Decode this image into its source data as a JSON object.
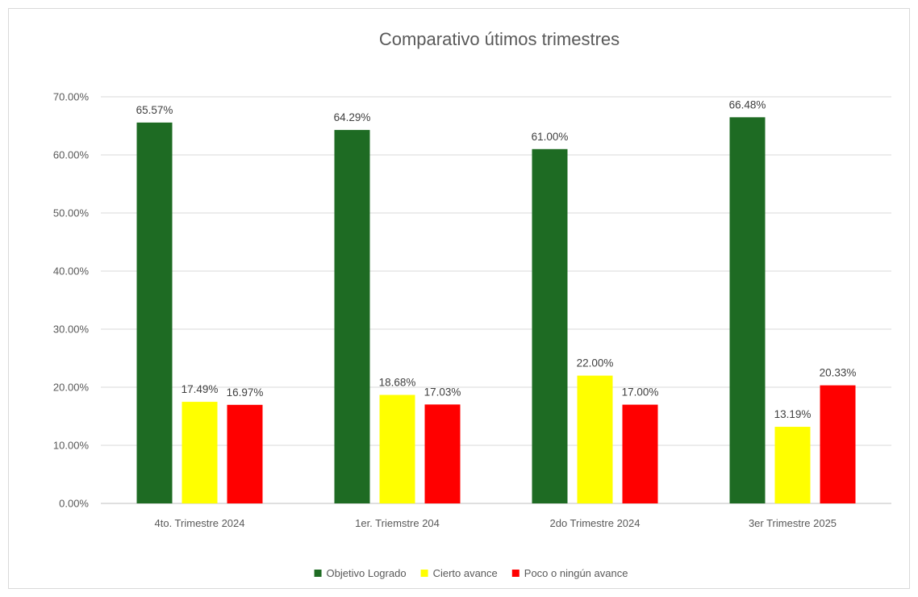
{
  "chart_data": {
    "type": "bar",
    "title": "Comparativo útimos trimestres",
    "categories": [
      "4to. Trimestre 2024",
      "1er. Triemstre 204",
      "2do Trimestre 2024",
      "3er Trimestre 2025"
    ],
    "series": [
      {
        "name": "Objetivo Logrado",
        "color": "#1e6b23",
        "values": [
          65.57,
          64.29,
          61.0,
          66.48
        ],
        "labels": [
          "65.57%",
          "64.29%",
          "61.00%",
          "66.48%"
        ]
      },
      {
        "name": "Cierto avance",
        "color": "#ffff00",
        "values": [
          17.49,
          18.68,
          22.0,
          13.19
        ],
        "labels": [
          "17.49%",
          "18.68%",
          "22.00%",
          "13.19%"
        ]
      },
      {
        "name": "Poco o ningún avance",
        "color": "#ff0000",
        "values": [
          16.97,
          17.03,
          17.0,
          20.33
        ],
        "labels": [
          "16.97%",
          "17.03%",
          "17.00%",
          "20.33%"
        ]
      }
    ],
    "yticks": [
      "0.00%",
      "10.00%",
      "20.00%",
      "30.00%",
      "40.00%",
      "50.00%",
      "60.00%",
      "70.00%"
    ],
    "ylim": [
      0,
      70
    ],
    "grid": true,
    "legend_position": "bottom"
  }
}
